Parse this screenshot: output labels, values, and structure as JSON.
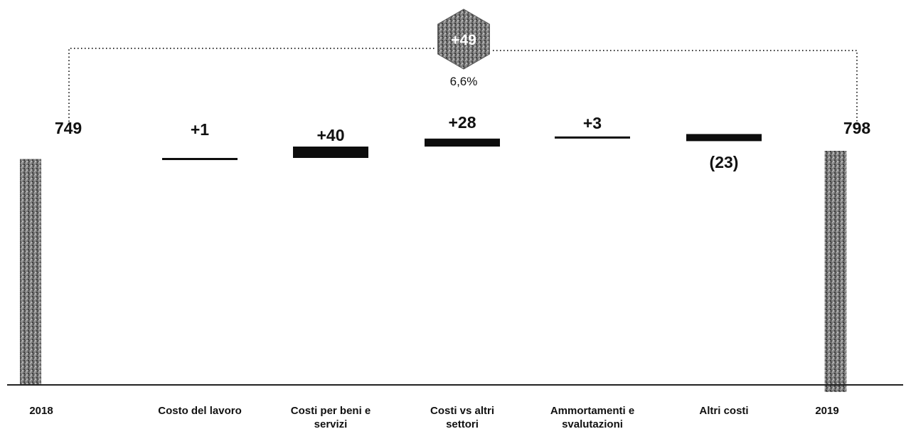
{
  "chart_data": {
    "type": "waterfall",
    "categories": [
      "2018",
      "Costo del lavoro",
      "Costi per beni e servizi",
      "Costi vs altri settori",
      "Ammortamenti e svalutazioni",
      "Altri costi",
      "2019"
    ],
    "values": [
      749,
      1,
      40,
      28,
      3,
      -23,
      798
    ],
    "value_labels": [
      "749",
      "+1",
      "+40",
      "+28",
      "+3",
      "(23)",
      "798"
    ],
    "measures": [
      "total",
      "relative",
      "relative",
      "relative",
      "relative",
      "relative",
      "total"
    ],
    "total_change_label": "+49",
    "total_change_percent": "6,6%",
    "colors": {
      "total": "#7a7a7a",
      "delta": "#0d0d0d",
      "axis": "#222222",
      "hex": "#6d6d6d"
    }
  }
}
